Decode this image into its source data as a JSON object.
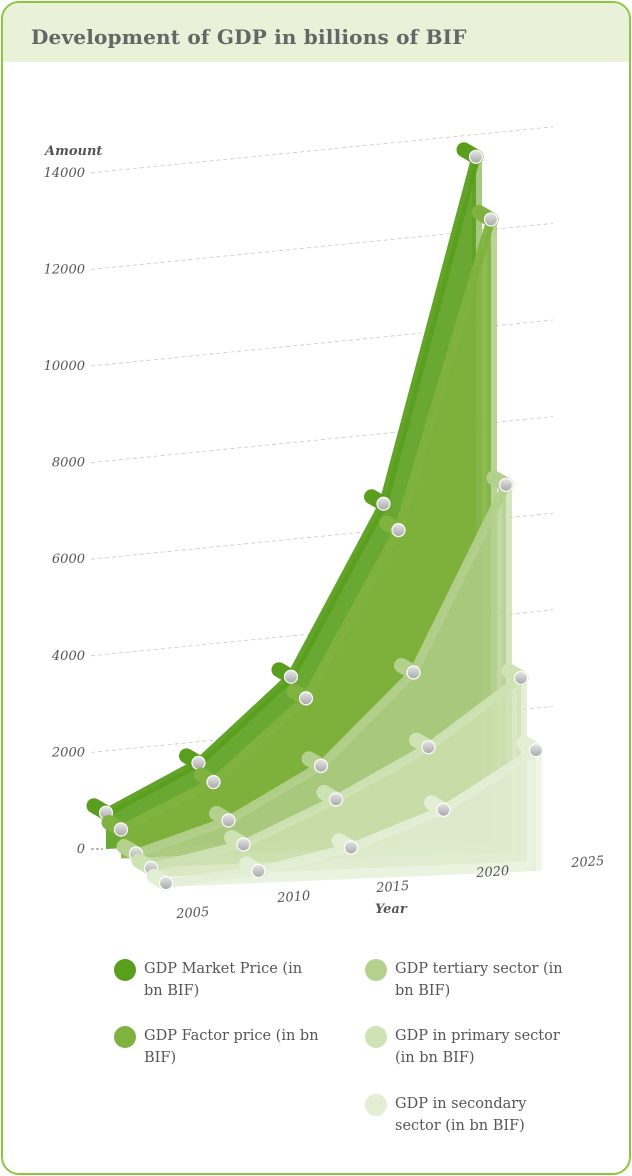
{
  "chart_data": {
    "type": "area",
    "title": "Development of GDP in billions of BIF",
    "xlabel": "Year",
    "ylabel": "Amount",
    "x": [
      2005,
      2010,
      2015,
      2020,
      2025
    ],
    "ylim": [
      0,
      14000
    ],
    "yticks": [
      0,
      2000,
      4000,
      6000,
      8000,
      10000,
      12000,
      14000
    ],
    "grid": true,
    "legend_position": "bottom",
    "series": [
      {
        "name": "GDP Market Price (in bn BIF)",
        "color": "#5a9e1e",
        "values": [
          750,
          1700,
          3400,
          6900,
          14000
        ]
      },
      {
        "name": "GDP Factor price (in bn BIF)",
        "color": "#7fb23e",
        "values": [
          600,
          1500,
          3150,
          6550,
          12900
        ]
      },
      {
        "name": "GDP tertiary sector (in bn BIF)",
        "color": "#b3d08c",
        "values": [
          300,
          900,
          1950,
          3800,
          7600
        ]
      },
      {
        "name": "GDP in primary sector (in bn BIF)",
        "color": "#cfe2b4",
        "values": [
          200,
          600,
          1450,
          2450,
          3800
        ]
      },
      {
        "name": "GDP in secondary sector (in bn BIF)",
        "color": "#e3eed5",
        "values": [
          80,
          250,
          650,
          1350,
          2500
        ]
      }
    ]
  }
}
